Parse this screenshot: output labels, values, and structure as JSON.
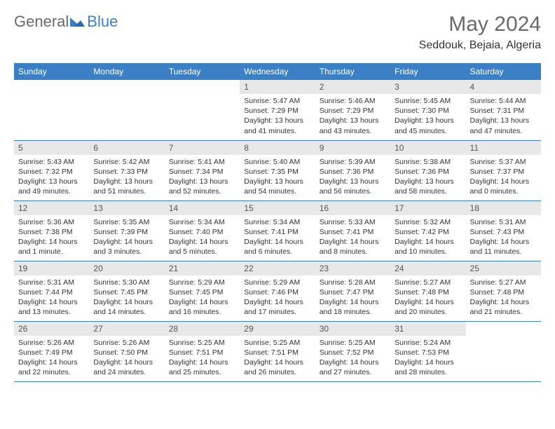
{
  "brand": {
    "part1": "General",
    "part2": "Blue"
  },
  "title": "May 2024",
  "location": "Seddouk, Bejaia, Algeria",
  "colors": {
    "header_bg": "#3b7fc4",
    "daynum_bg": "#e8e8e8",
    "text": "#333333",
    "brand_gray": "#6a6a6a",
    "brand_blue": "#3b7fc4"
  },
  "weekdays": [
    "Sunday",
    "Monday",
    "Tuesday",
    "Wednesday",
    "Thursday",
    "Friday",
    "Saturday"
  ],
  "weeks": [
    [
      null,
      null,
      null,
      {
        "n": "1",
        "sunrise": "5:47 AM",
        "sunset": "7:29 PM",
        "daylight": "13 hours and 41 minutes."
      },
      {
        "n": "2",
        "sunrise": "5:46 AM",
        "sunset": "7:29 PM",
        "daylight": "13 hours and 43 minutes."
      },
      {
        "n": "3",
        "sunrise": "5:45 AM",
        "sunset": "7:30 PM",
        "daylight": "13 hours and 45 minutes."
      },
      {
        "n": "4",
        "sunrise": "5:44 AM",
        "sunset": "7:31 PM",
        "daylight": "13 hours and 47 minutes."
      }
    ],
    [
      {
        "n": "5",
        "sunrise": "5:43 AM",
        "sunset": "7:32 PM",
        "daylight": "13 hours and 49 minutes."
      },
      {
        "n": "6",
        "sunrise": "5:42 AM",
        "sunset": "7:33 PM",
        "daylight": "13 hours and 51 minutes."
      },
      {
        "n": "7",
        "sunrise": "5:41 AM",
        "sunset": "7:34 PM",
        "daylight": "13 hours and 52 minutes."
      },
      {
        "n": "8",
        "sunrise": "5:40 AM",
        "sunset": "7:35 PM",
        "daylight": "13 hours and 54 minutes."
      },
      {
        "n": "9",
        "sunrise": "5:39 AM",
        "sunset": "7:36 PM",
        "daylight": "13 hours and 56 minutes."
      },
      {
        "n": "10",
        "sunrise": "5:38 AM",
        "sunset": "7:36 PM",
        "daylight": "13 hours and 58 minutes."
      },
      {
        "n": "11",
        "sunrise": "5:37 AM",
        "sunset": "7:37 PM",
        "daylight": "14 hours and 0 minutes."
      }
    ],
    [
      {
        "n": "12",
        "sunrise": "5:36 AM",
        "sunset": "7:38 PM",
        "daylight": "14 hours and 1 minute."
      },
      {
        "n": "13",
        "sunrise": "5:35 AM",
        "sunset": "7:39 PM",
        "daylight": "14 hours and 3 minutes."
      },
      {
        "n": "14",
        "sunrise": "5:34 AM",
        "sunset": "7:40 PM",
        "daylight": "14 hours and 5 minutes."
      },
      {
        "n": "15",
        "sunrise": "5:34 AM",
        "sunset": "7:41 PM",
        "daylight": "14 hours and 6 minutes."
      },
      {
        "n": "16",
        "sunrise": "5:33 AM",
        "sunset": "7:41 PM",
        "daylight": "14 hours and 8 minutes."
      },
      {
        "n": "17",
        "sunrise": "5:32 AM",
        "sunset": "7:42 PM",
        "daylight": "14 hours and 10 minutes."
      },
      {
        "n": "18",
        "sunrise": "5:31 AM",
        "sunset": "7:43 PM",
        "daylight": "14 hours and 11 minutes."
      }
    ],
    [
      {
        "n": "19",
        "sunrise": "5:31 AM",
        "sunset": "7:44 PM",
        "daylight": "14 hours and 13 minutes."
      },
      {
        "n": "20",
        "sunrise": "5:30 AM",
        "sunset": "7:45 PM",
        "daylight": "14 hours and 14 minutes."
      },
      {
        "n": "21",
        "sunrise": "5:29 AM",
        "sunset": "7:45 PM",
        "daylight": "14 hours and 16 minutes."
      },
      {
        "n": "22",
        "sunrise": "5:29 AM",
        "sunset": "7:46 PM",
        "daylight": "14 hours and 17 minutes."
      },
      {
        "n": "23",
        "sunrise": "5:28 AM",
        "sunset": "7:47 PM",
        "daylight": "14 hours and 18 minutes."
      },
      {
        "n": "24",
        "sunrise": "5:27 AM",
        "sunset": "7:48 PM",
        "daylight": "14 hours and 20 minutes."
      },
      {
        "n": "25",
        "sunrise": "5:27 AM",
        "sunset": "7:48 PM",
        "daylight": "14 hours and 21 minutes."
      }
    ],
    [
      {
        "n": "26",
        "sunrise": "5:26 AM",
        "sunset": "7:49 PM",
        "daylight": "14 hours and 22 minutes."
      },
      {
        "n": "27",
        "sunrise": "5:26 AM",
        "sunset": "7:50 PM",
        "daylight": "14 hours and 24 minutes."
      },
      {
        "n": "28",
        "sunrise": "5:25 AM",
        "sunset": "7:51 PM",
        "daylight": "14 hours and 25 minutes."
      },
      {
        "n": "29",
        "sunrise": "5:25 AM",
        "sunset": "7:51 PM",
        "daylight": "14 hours and 26 minutes."
      },
      {
        "n": "30",
        "sunrise": "5:25 AM",
        "sunset": "7:52 PM",
        "daylight": "14 hours and 27 minutes."
      },
      {
        "n": "31",
        "sunrise": "5:24 AM",
        "sunset": "7:53 PM",
        "daylight": "14 hours and 28 minutes."
      },
      null
    ]
  ],
  "labels": {
    "sunrise": "Sunrise:",
    "sunset": "Sunset:",
    "daylight": "Daylight:"
  }
}
